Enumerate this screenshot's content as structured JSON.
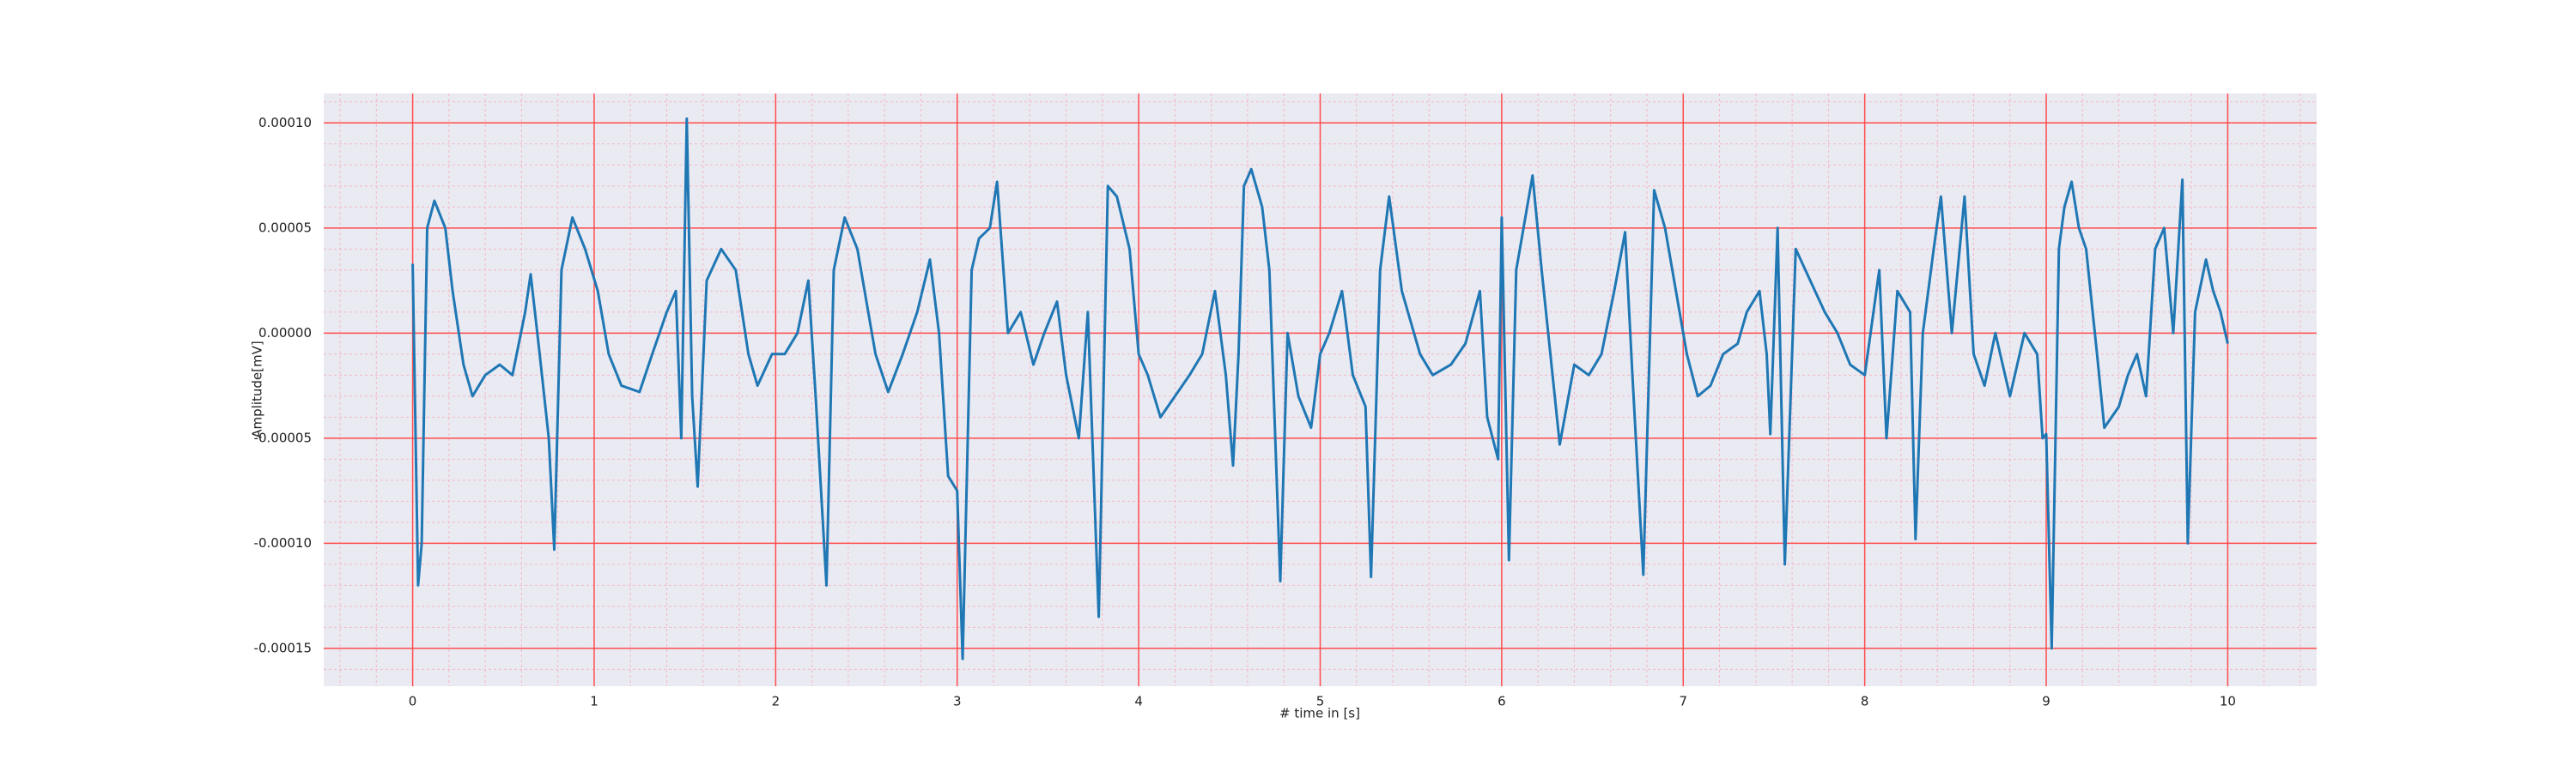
{
  "chart_data": {
    "type": "line",
    "xlabel": "# time in [s]",
    "ylabel": "Amplitude[mV]",
    "color": "#1f77b4",
    "grid": true,
    "grid_color": "#ff4d4d",
    "minor_grid": true,
    "minor_grid_color": "#f4b8c4",
    "background": "#eaeaf2",
    "xlim": [
      -0.49,
      10.49
    ],
    "xticks": [
      0,
      1,
      2,
      3,
      4,
      5,
      6,
      7,
      8,
      9,
      10
    ],
    "ylim": [
      -0.000168,
      0.000114
    ],
    "yticks": [
      {
        "value": -0.00015,
        "label": "-0.00015"
      },
      {
        "value": -0.0001,
        "label": "-0.00010"
      },
      {
        "value": -5e-05,
        "label": "-0.00005"
      },
      {
        "value": 0,
        "label": "0.00000"
      },
      {
        "value": 5e-05,
        "label": "0.00005"
      },
      {
        "value": 0.0001,
        "label": "0.00010"
      }
    ],
    "x": [
      0.0,
      0.03,
      0.05,
      0.08,
      0.12,
      0.18,
      0.22,
      0.28,
      0.33,
      0.4,
      0.48,
      0.55,
      0.62,
      0.65,
      0.7,
      0.75,
      0.78,
      0.82,
      0.88,
      0.95,
      1.02,
      1.08,
      1.15,
      1.25,
      1.32,
      1.4,
      1.45,
      1.48,
      1.51,
      1.54,
      1.57,
      1.62,
      1.7,
      1.78,
      1.85,
      1.9,
      1.98,
      2.05,
      2.12,
      2.18,
      2.22,
      2.28,
      2.32,
      2.38,
      2.45,
      2.55,
      2.62,
      2.7,
      2.78,
      2.85,
      2.9,
      2.95,
      3.0,
      3.03,
      3.08,
      3.12,
      3.18,
      3.22,
      3.28,
      3.35,
      3.42,
      3.48,
      3.55,
      3.6,
      3.67,
      3.72,
      3.78,
      3.83,
      3.88,
      3.95,
      4.0,
      4.05,
      4.12,
      4.2,
      4.28,
      4.35,
      4.42,
      4.48,
      4.52,
      4.55,
      4.58,
      4.62,
      4.68,
      4.72,
      4.78,
      4.82,
      4.88,
      4.95,
      5.0,
      5.05,
      5.12,
      5.18,
      5.25,
      5.28,
      5.33,
      5.38,
      5.45,
      5.55,
      5.62,
      5.72,
      5.8,
      5.88,
      5.92,
      5.98,
      6.0,
      6.04,
      6.08,
      6.12,
      6.17,
      6.22,
      6.28,
      6.32,
      6.4,
      6.48,
      6.55,
      6.62,
      6.68,
      6.72,
      6.78,
      6.84,
      6.9,
      6.96,
      7.02,
      7.08,
      7.15,
      7.22,
      7.3,
      7.35,
      7.42,
      7.46,
      7.48,
      7.52,
      7.56,
      7.62,
      7.7,
      7.78,
      7.85,
      7.92,
      8.0,
      8.08,
      8.12,
      8.18,
      8.25,
      8.28,
      8.32,
      8.38,
      8.42,
      8.48,
      8.55,
      8.6,
      8.66,
      8.72,
      8.8,
      8.88,
      8.95,
      8.98,
      9.0,
      9.03,
      9.07,
      9.1,
      9.14,
      9.18,
      9.22,
      9.28,
      9.32,
      9.4,
      9.45,
      9.5,
      9.55,
      9.6,
      9.65,
      9.7,
      9.75,
      9.78,
      9.82,
      9.88,
      9.92,
      9.96,
      10.0
    ],
    "values": [
      3.3e-05,
      -0.00012,
      -0.0001,
      5e-05,
      6.3e-05,
      5e-05,
      2e-05,
      -1.5e-05,
      -3e-05,
      -2e-05,
      -1.5e-05,
      -2e-05,
      1e-05,
      2.8e-05,
      -1e-05,
      -5e-05,
      -0.000103,
      3e-05,
      5.5e-05,
      4e-05,
      2e-05,
      -1e-05,
      -2.5e-05,
      -2.8e-05,
      -1e-05,
      1e-05,
      2e-05,
      -5e-05,
      0.000102,
      -3e-05,
      -7.3e-05,
      2.5e-05,
      4e-05,
      3e-05,
      -1e-05,
      -2.5e-05,
      -1e-05,
      -1e-05,
      0,
      2.5e-05,
      -3e-05,
      -0.00012,
      3e-05,
      5.5e-05,
      4e-05,
      -1e-05,
      -2.8e-05,
      -1e-05,
      1e-05,
      3.5e-05,
      0,
      -6.8e-05,
      -7.5e-05,
      -0.000155,
      3e-05,
      4.5e-05,
      5e-05,
      7.2e-05,
      0,
      1e-05,
      -1.5e-05,
      0,
      1.5e-05,
      -2e-05,
      -5e-05,
      1e-05,
      -0.000135,
      7e-05,
      6.5e-05,
      4e-05,
      -1e-05,
      -2e-05,
      -4e-05,
      -3e-05,
      -2e-05,
      -1e-05,
      2e-05,
      -2e-05,
      -6.3e-05,
      -1e-05,
      7e-05,
      7.8e-05,
      6e-05,
      3e-05,
      -0.000118,
      0,
      -3e-05,
      -4.5e-05,
      -1e-05,
      0,
      2e-05,
      -2e-05,
      -3.5e-05,
      -0.000116,
      3e-05,
      6.5e-05,
      2e-05,
      -1e-05,
      -2e-05,
      -1.5e-05,
      -5e-06,
      2e-05,
      -4e-05,
      -6e-05,
      5.5e-05,
      -0.000108,
      3e-05,
      5e-05,
      7.5e-05,
      3e-05,
      -2e-05,
      -5.3e-05,
      -1.5e-05,
      -2e-05,
      -1e-05,
      2e-05,
      4.8e-05,
      -2e-05,
      -0.000115,
      6.8e-05,
      5e-05,
      2e-05,
      -1e-05,
      -3e-05,
      -2.5e-05,
      -1e-05,
      -5e-06,
      1e-05,
      2e-05,
      -1e-05,
      -4.8e-05,
      5e-05,
      -0.00011,
      4e-05,
      2.5e-05,
      1e-05,
      0,
      -1.5e-05,
      -2e-05,
      3e-05,
      -5e-05,
      2e-05,
      1e-05,
      -9.8e-05,
      0,
      4e-05,
      6.5e-05,
      0,
      6.5e-05,
      -1e-05,
      -2.5e-05,
      0,
      -3e-05,
      0,
      -1e-05,
      -5e-05,
      -4.8e-05,
      -0.00015,
      4e-05,
      6e-05,
      7.2e-05,
      5e-05,
      4e-05,
      -1e-05,
      -4.5e-05,
      -3.5e-05,
      -2e-05,
      -1e-05,
      -3e-05,
      4e-05,
      5e-05,
      0,
      7.3e-05,
      -0.0001,
      1e-05,
      3.5e-05,
      2e-05,
      1e-05,
      -5e-06
    ]
  }
}
